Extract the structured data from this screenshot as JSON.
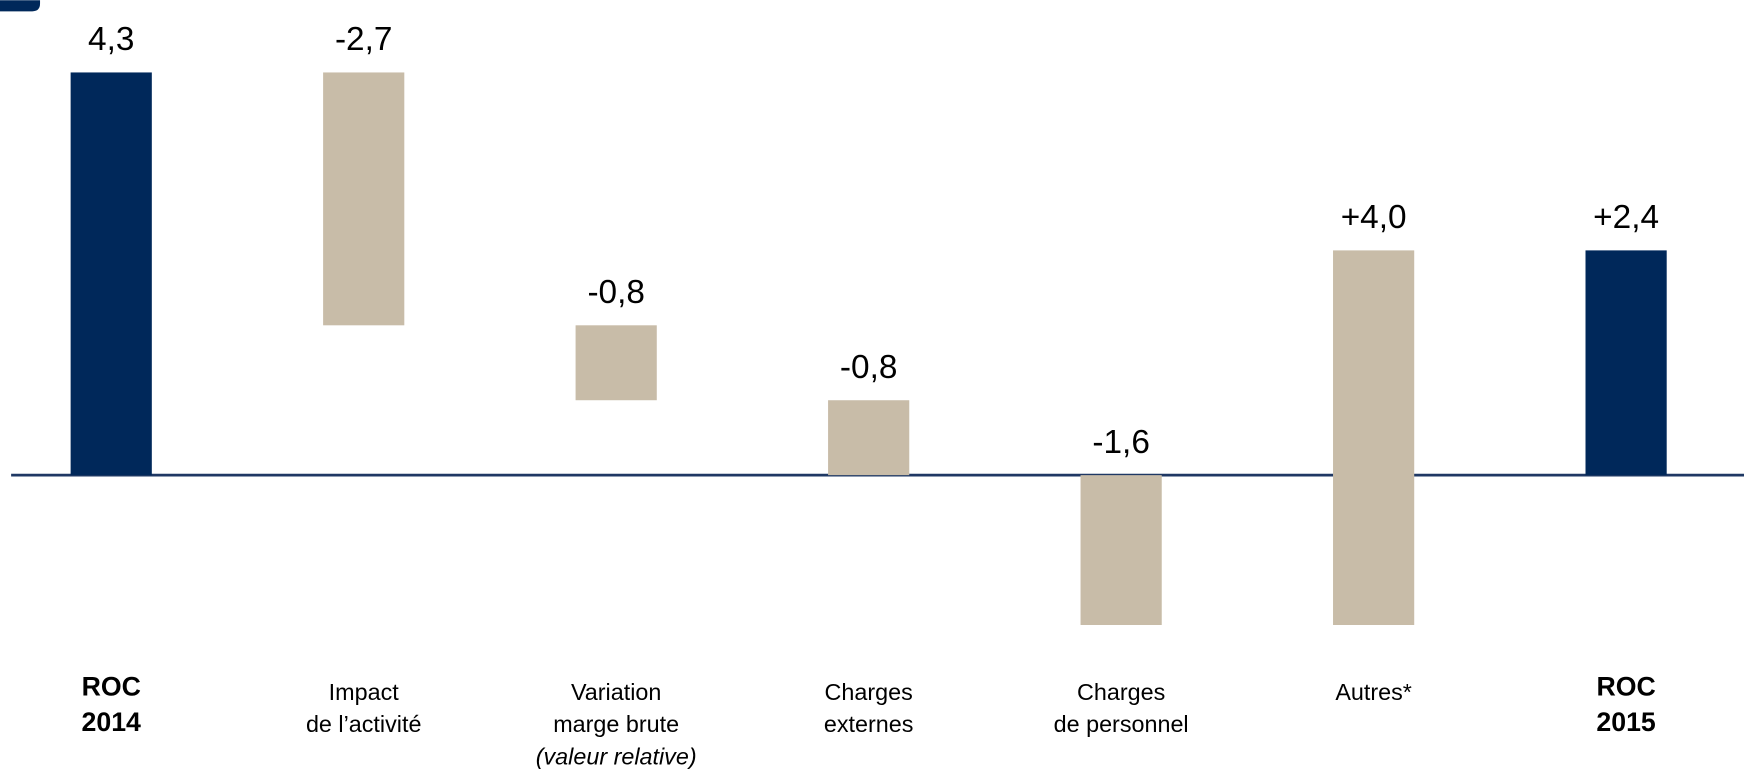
{
  "chart_data": {
    "type": "waterfall",
    "categories": [
      [
        "ROC",
        "2014"
      ],
      [
        "Impact",
        "de l’activité"
      ],
      [
        "Variation",
        "marge brute",
        "(valeur relative)"
      ],
      [
        "Charges",
        "externes"
      ],
      [
        "Charges",
        "de personnel"
      ],
      [
        "Autres*"
      ],
      [
        "ROC",
        "2015"
      ]
    ],
    "values": [
      4.3,
      -2.7,
      -0.8,
      -0.8,
      -1.6,
      4.0,
      2.4
    ],
    "value_labels": [
      "4,3",
      "-2,7",
      "-0,8",
      "-0,8",
      "-1,6",
      "+4,0",
      "+2,4"
    ],
    "measure": [
      "absolute",
      "relative",
      "relative",
      "relative",
      "relative",
      "relative",
      "absolute"
    ],
    "colors": {
      "absolute": "#00285a",
      "relative": "#c8bca8"
    },
    "ylim": [
      -2,
      4.5
    ]
  }
}
